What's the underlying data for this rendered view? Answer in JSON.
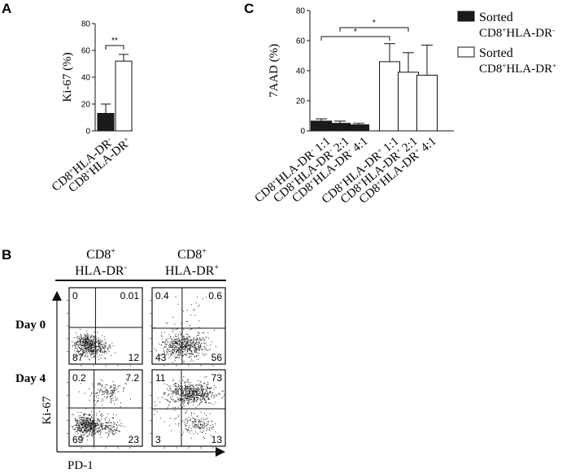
{
  "panels": {
    "a_letter": "A",
    "b_letter": "B",
    "c_letter": "C"
  },
  "chart_data": [
    {
      "panel": "A",
      "type": "bar",
      "ylabel": "Ki-67 (%)",
      "ylim": [
        0,
        80
      ],
      "yticks": [
        0,
        20,
        40,
        60,
        80
      ],
      "categories": [
        {
          "base": "CD8",
          "sup1": "+",
          "mid": "HLA-DR",
          "sup2": "-"
        },
        {
          "base": "CD8",
          "sup1": "+",
          "mid": "HLA-DR",
          "sup2": "+"
        }
      ],
      "values": [
        13,
        52
      ],
      "errors": [
        7,
        5
      ],
      "fills": [
        "#1a1a1a",
        "#ffffff"
      ],
      "significance": [
        {
          "from": 0,
          "to": 1,
          "label": "**"
        }
      ],
      "grid": false
    },
    {
      "panel": "C",
      "type": "bar",
      "ylabel": "7AAD (%)",
      "ylim": [
        0,
        80
      ],
      "yticks": [
        0,
        20,
        40,
        60,
        80
      ],
      "categories": [
        {
          "base": "CD8",
          "sup1": "+",
          "mid": "HLA-DR",
          "sup2": "-",
          "ratio": " 1:1"
        },
        {
          "base": "CD8",
          "sup1": "+",
          "mid": "HLA-DR",
          "sup2": "-",
          "ratio": " 2:1"
        },
        {
          "base": "CD8",
          "sup1": "+",
          "mid": "HLA-DR",
          "sup2": "-",
          "ratio": " 4:1"
        },
        {
          "base": "CD8",
          "sup1": "+",
          "mid": "HLA-DR",
          "sup2": "+",
          "ratio": " 1:1"
        },
        {
          "base": "CD8",
          "sup1": "+",
          "mid": "HLA-DR",
          "sup2": "+",
          "ratio": " 2:1"
        },
        {
          "base": "CD8",
          "sup1": "+",
          "mid": "HLA-DR",
          "sup2": "+",
          "ratio": " 4:1"
        }
      ],
      "values": [
        6.5,
        5,
        4,
        46,
        39,
        37
      ],
      "errors": [
        1.5,
        1.5,
        1,
        12,
        13,
        20
      ],
      "fills": [
        "#1a1a1a",
        "#1a1a1a",
        "#1a1a1a",
        "#ffffff",
        "#ffffff",
        "#ffffff"
      ],
      "significance": [
        {
          "from": 0,
          "to": 3,
          "label": "*",
          "level": 1
        },
        {
          "from": 1,
          "to": 4,
          "label": "*",
          "level": 2
        }
      ],
      "legend": [
        {
          "fill": "#1a1a1a",
          "line1": "Sorted",
          "base": "CD8",
          "sup1": "+",
          "mid": "HLA-DR",
          "sup2": "-"
        },
        {
          "fill": "#ffffff",
          "line1": "Sorted",
          "base": "CD8",
          "sup1": "+",
          "mid": "HLA-DR",
          "sup2": "+"
        }
      ],
      "legend_position": "top-right",
      "grid": false
    },
    {
      "panel": "B",
      "type": "scatter",
      "xlabel": "PD-1",
      "ylabel": "Ki-67",
      "columns": [
        {
          "base": "CD8",
          "sup1": "+",
          "mid": "HLA-DR",
          "sup2": "-"
        },
        {
          "base": "CD8",
          "sup1": "+",
          "mid": "HLA-DR",
          "sup2": "+"
        }
      ],
      "rows": [
        "Day 0",
        "Day 4"
      ],
      "quadrants": [
        {
          "row": 0,
          "col": 0,
          "ul": "0",
          "ur": "0.01",
          "ll": "87",
          "lr": "12"
        },
        {
          "row": 0,
          "col": 1,
          "ul": "0.4",
          "ur": "0.6",
          "ll": "43",
          "lr": "56"
        },
        {
          "row": 1,
          "col": 0,
          "ul": "0.2",
          "ur": "7.2",
          "ll": "69",
          "lr": "23"
        },
        {
          "row": 1,
          "col": 1,
          "ul": "11",
          "ur": "73",
          "ll": "3",
          "lr": "13"
        }
      ]
    }
  ]
}
